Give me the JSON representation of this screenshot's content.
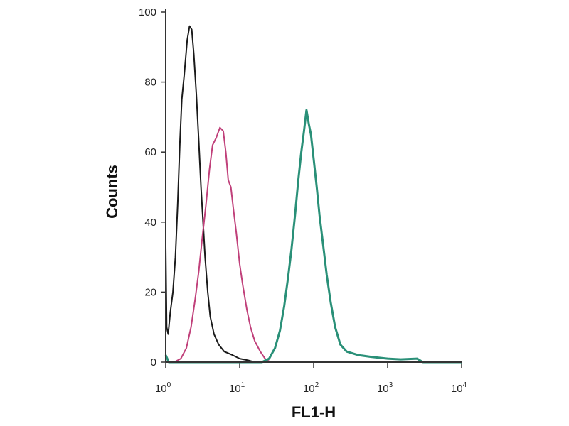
{
  "chart_data": {
    "type": "line",
    "title": "",
    "xlabel": "FL1-H",
    "ylabel": "Counts",
    "xscale": "log",
    "xlim": [
      1,
      10000
    ],
    "ylim": [
      0,
      100
    ],
    "xticks": [
      {
        "v": 1,
        "base": "10",
        "exp": "0"
      },
      {
        "v": 10,
        "base": "10",
        "exp": "1"
      },
      {
        "v": 100,
        "base": "10",
        "exp": "2"
      },
      {
        "v": 1000,
        "base": "10",
        "exp": "3"
      },
      {
        "v": 10000,
        "base": "10",
        "exp": "4"
      }
    ],
    "yticks": [
      "0",
      "20",
      "40",
      "60",
      "80",
      "100"
    ],
    "grid": false,
    "series": [
      {
        "color": "#1a1a1a",
        "points": [
          [
            1,
            33
          ],
          [
            1.03,
            10
          ],
          [
            1.08,
            8
          ],
          [
            1.15,
            14
          ],
          [
            1.25,
            20
          ],
          [
            1.35,
            30
          ],
          [
            1.45,
            45
          ],
          [
            1.55,
            62
          ],
          [
            1.65,
            75
          ],
          [
            1.78,
            82
          ],
          [
            1.95,
            92
          ],
          [
            2.1,
            96
          ],
          [
            2.25,
            95
          ],
          [
            2.4,
            88
          ],
          [
            2.6,
            76
          ],
          [
            2.8,
            63
          ],
          [
            3.0,
            50
          ],
          [
            3.2,
            40
          ],
          [
            3.4,
            30
          ],
          [
            3.7,
            20
          ],
          [
            4.0,
            13
          ],
          [
            4.5,
            8
          ],
          [
            5.2,
            5
          ],
          [
            6.2,
            3
          ],
          [
            8,
            2
          ],
          [
            10,
            1
          ],
          [
            13,
            0.5
          ],
          [
            16,
            0
          ]
        ]
      },
      {
        "color": "#c0407a",
        "points": [
          [
            1.3,
            0
          ],
          [
            1.6,
            1
          ],
          [
            1.9,
            4
          ],
          [
            2.2,
            10
          ],
          [
            2.5,
            18
          ],
          [
            2.8,
            26
          ],
          [
            3.1,
            35
          ],
          [
            3.5,
            45
          ],
          [
            3.9,
            55
          ],
          [
            4.3,
            62
          ],
          [
            4.8,
            64
          ],
          [
            5.4,
            67
          ],
          [
            6.0,
            66
          ],
          [
            6.5,
            60
          ],
          [
            7.0,
            52
          ],
          [
            7.6,
            50
          ],
          [
            8.2,
            44
          ],
          [
            9,
            37
          ],
          [
            10,
            28
          ],
          [
            11,
            22
          ],
          [
            12.5,
            15
          ],
          [
            14,
            10
          ],
          [
            16,
            6
          ],
          [
            19,
            3
          ],
          [
            22,
            1
          ],
          [
            26,
            0
          ],
          [
            10000,
            0
          ]
        ]
      },
      {
        "color": "#2a9078",
        "points": [
          [
            1,
            2
          ],
          [
            1.1,
            0
          ],
          [
            20,
            0
          ],
          [
            25,
            1
          ],
          [
            30,
            4
          ],
          [
            35,
            9
          ],
          [
            40,
            16
          ],
          [
            45,
            24
          ],
          [
            50,
            32
          ],
          [
            56,
            42
          ],
          [
            62,
            52
          ],
          [
            68,
            60
          ],
          [
            74,
            66
          ],
          [
            80,
            72
          ],
          [
            86,
            68
          ],
          [
            92,
            65
          ],
          [
            100,
            58
          ],
          [
            110,
            50
          ],
          [
            120,
            42
          ],
          [
            135,
            33
          ],
          [
            150,
            25
          ],
          [
            170,
            17
          ],
          [
            195,
            10
          ],
          [
            230,
            5
          ],
          [
            280,
            3
          ],
          [
            400,
            2
          ],
          [
            600,
            1.5
          ],
          [
            1000,
            1
          ],
          [
            1500,
            0.8
          ],
          [
            2500,
            1
          ],
          [
            3000,
            0
          ],
          [
            10000,
            0
          ]
        ]
      }
    ]
  }
}
